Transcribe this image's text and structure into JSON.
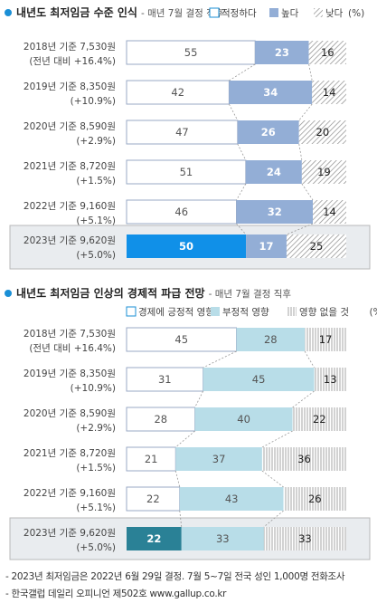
{
  "colors": {
    "title_dot": "#1a8fd6",
    "panel_border": "#b8b8b8",
    "highlight_bg": "#e9ecef",
    "chart1": {
      "appropriate": "#ffffff",
      "appropriate_border": "#9aa9c4",
      "high": "#93aed6",
      "low": "hatch-gray",
      "highlight_appropriate": "#1090e8"
    },
    "chart2": {
      "positive": "#ffffff",
      "positive_border": "#9aa9c4",
      "negative": "#b8dde8",
      "none": "hatch-gray",
      "highlight_positive": "#2a8196"
    }
  },
  "chart_data": [
    {
      "type": "bar",
      "title": "내년도 최저임금 수준 인식",
      "subtitle": "- 매년 7월 결정 직후",
      "legend_placement": "top-right",
      "legend_suffix": "(%)",
      "categories": [
        [
          "2018년 기준 7,530원",
          "(전년 대비 +16.4%)"
        ],
        [
          "2019년 기준 8,350원",
          "(+10.9%)"
        ],
        [
          "2020년 기준 8,590원",
          "(+2.9%)"
        ],
        [
          "2021년 기준 8,720원",
          "(+1.5%)"
        ],
        [
          "2022년 기준 9,160원",
          "(+5.1%)"
        ],
        [
          "2023년 기준 9,620원",
          "(+5.0%)"
        ]
      ],
      "series": [
        {
          "name": "적정하다",
          "values": [
            55,
            42,
            47,
            51,
            46,
            50
          ]
        },
        {
          "name": "높다",
          "values": [
            23,
            34,
            26,
            24,
            32,
            17
          ]
        },
        {
          "name": "낮다",
          "values": [
            16,
            14,
            20,
            19,
            14,
            25
          ]
        }
      ],
      "highlight_index": 5
    },
    {
      "type": "bar",
      "title": "내년도 최저임금 인상의 경제적 파급 전망",
      "subtitle": "- 매년 7월 결정 직후",
      "legend_placement": "top-right",
      "legend_suffix": "(%)",
      "categories": [
        [
          "2018년 기준 7,530원",
          "(전년 대비 +16.4%)"
        ],
        [
          "2019년 기준 8,350원",
          "(+10.9%)"
        ],
        [
          "2020년 기준 8,590원",
          "(+2.9%)"
        ],
        [
          "2021년 기준 8,720원",
          "(+1.5%)"
        ],
        [
          "2022년 기준 9,160원",
          "(+5.1%)"
        ],
        [
          "2023년 기준 9,620원",
          "(+5.0%)"
        ]
      ],
      "series": [
        {
          "name": "경제에 긍정적 영향",
          "values": [
            45,
            31,
            28,
            21,
            22,
            22
          ]
        },
        {
          "name": "부정적 영향",
          "values": [
            28,
            45,
            40,
            37,
            43,
            33
          ]
        },
        {
          "name": "영향 없을 것",
          "values": [
            17,
            13,
            22,
            36,
            26,
            33
          ]
        }
      ],
      "highlight_index": 5
    }
  ],
  "footnotes": [
    "- 2023년 최저임금은 2022년 6월 29일 결정. 7월 5~7일 전국 성인 1,000명 전화조사",
    "- 한국갤럽 데일리 오피니언 제502호 www.gallup.co.kr"
  ]
}
